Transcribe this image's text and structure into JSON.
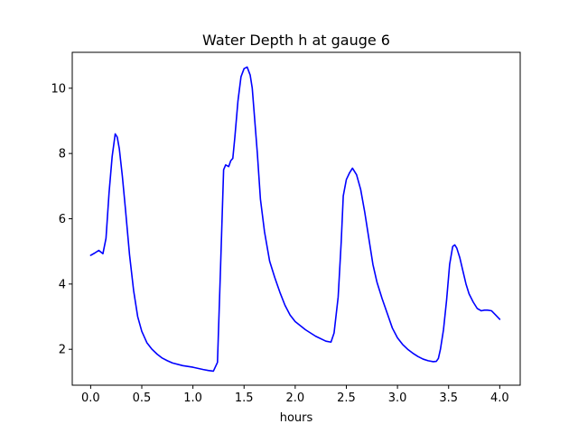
{
  "chart_data": {
    "type": "line",
    "title": "Water Depth h at gauge 6",
    "xlabel": "hours",
    "ylabel": "",
    "xlim": [
      -0.18,
      4.2
    ],
    "ylim": [
      0.9,
      11.1
    ],
    "xticks": [
      0.0,
      0.5,
      1.0,
      1.5,
      2.0,
      2.5,
      3.0,
      3.5,
      4.0
    ],
    "xtick_labels": [
      "0.0",
      "0.5",
      "1.0",
      "1.5",
      "2.0",
      "2.5",
      "3.0",
      "3.5",
      "4.0"
    ],
    "yticks": [
      2,
      4,
      6,
      8,
      10
    ],
    "ytick_labels": [
      "2",
      "4",
      "6",
      "8",
      "10"
    ],
    "grid": false,
    "line_color": "#0000ff",
    "series": [
      {
        "name": "",
        "x": [
          0.0,
          0.04,
          0.08,
          0.12,
          0.15,
          0.18,
          0.21,
          0.24,
          0.26,
          0.28,
          0.31,
          0.34,
          0.38,
          0.42,
          0.46,
          0.5,
          0.55,
          0.6,
          0.65,
          0.7,
          0.75,
          0.8,
          0.9,
          1.0,
          1.1,
          1.15,
          1.2,
          1.24,
          1.27,
          1.3,
          1.32,
          1.35,
          1.37,
          1.39,
          1.41,
          1.44,
          1.47,
          1.5,
          1.53,
          1.56,
          1.58,
          1.6,
          1.63,
          1.66,
          1.7,
          1.75,
          1.8,
          1.85,
          1.9,
          1.95,
          2.0,
          2.1,
          2.2,
          2.3,
          2.35,
          2.38,
          2.42,
          2.45,
          2.47,
          2.5,
          2.53,
          2.56,
          2.6,
          2.64,
          2.68,
          2.72,
          2.76,
          2.8,
          2.85,
          2.9,
          2.95,
          3.0,
          3.05,
          3.1,
          3.15,
          3.2,
          3.25,
          3.3,
          3.35,
          3.38,
          3.4,
          3.42,
          3.45,
          3.48,
          3.51,
          3.54,
          3.56,
          3.58,
          3.61,
          3.64,
          3.67,
          3.7,
          3.74,
          3.78,
          3.82,
          3.85,
          3.88,
          3.92,
          3.96,
          4.0
        ],
        "y": [
          4.88,
          4.95,
          5.03,
          4.93,
          5.4,
          6.8,
          7.9,
          8.6,
          8.5,
          8.15,
          7.3,
          6.3,
          4.9,
          3.8,
          3.0,
          2.55,
          2.2,
          2.0,
          1.85,
          1.73,
          1.65,
          1.58,
          1.5,
          1.45,
          1.38,
          1.35,
          1.33,
          1.6,
          4.5,
          7.5,
          7.65,
          7.6,
          7.78,
          7.85,
          8.5,
          9.6,
          10.35,
          10.6,
          10.65,
          10.4,
          10.0,
          9.2,
          8.0,
          6.6,
          5.6,
          4.7,
          4.2,
          3.75,
          3.35,
          3.05,
          2.85,
          2.6,
          2.4,
          2.25,
          2.22,
          2.5,
          3.6,
          5.3,
          6.7,
          7.2,
          7.4,
          7.55,
          7.35,
          6.9,
          6.2,
          5.4,
          4.6,
          4.05,
          3.55,
          3.1,
          2.65,
          2.35,
          2.15,
          2.0,
          1.88,
          1.78,
          1.7,
          1.65,
          1.62,
          1.63,
          1.72,
          2.0,
          2.6,
          3.5,
          4.6,
          5.15,
          5.2,
          5.1,
          4.8,
          4.4,
          4.0,
          3.7,
          3.45,
          3.25,
          3.18,
          3.2,
          3.2,
          3.18,
          3.05,
          2.92
        ]
      }
    ]
  }
}
